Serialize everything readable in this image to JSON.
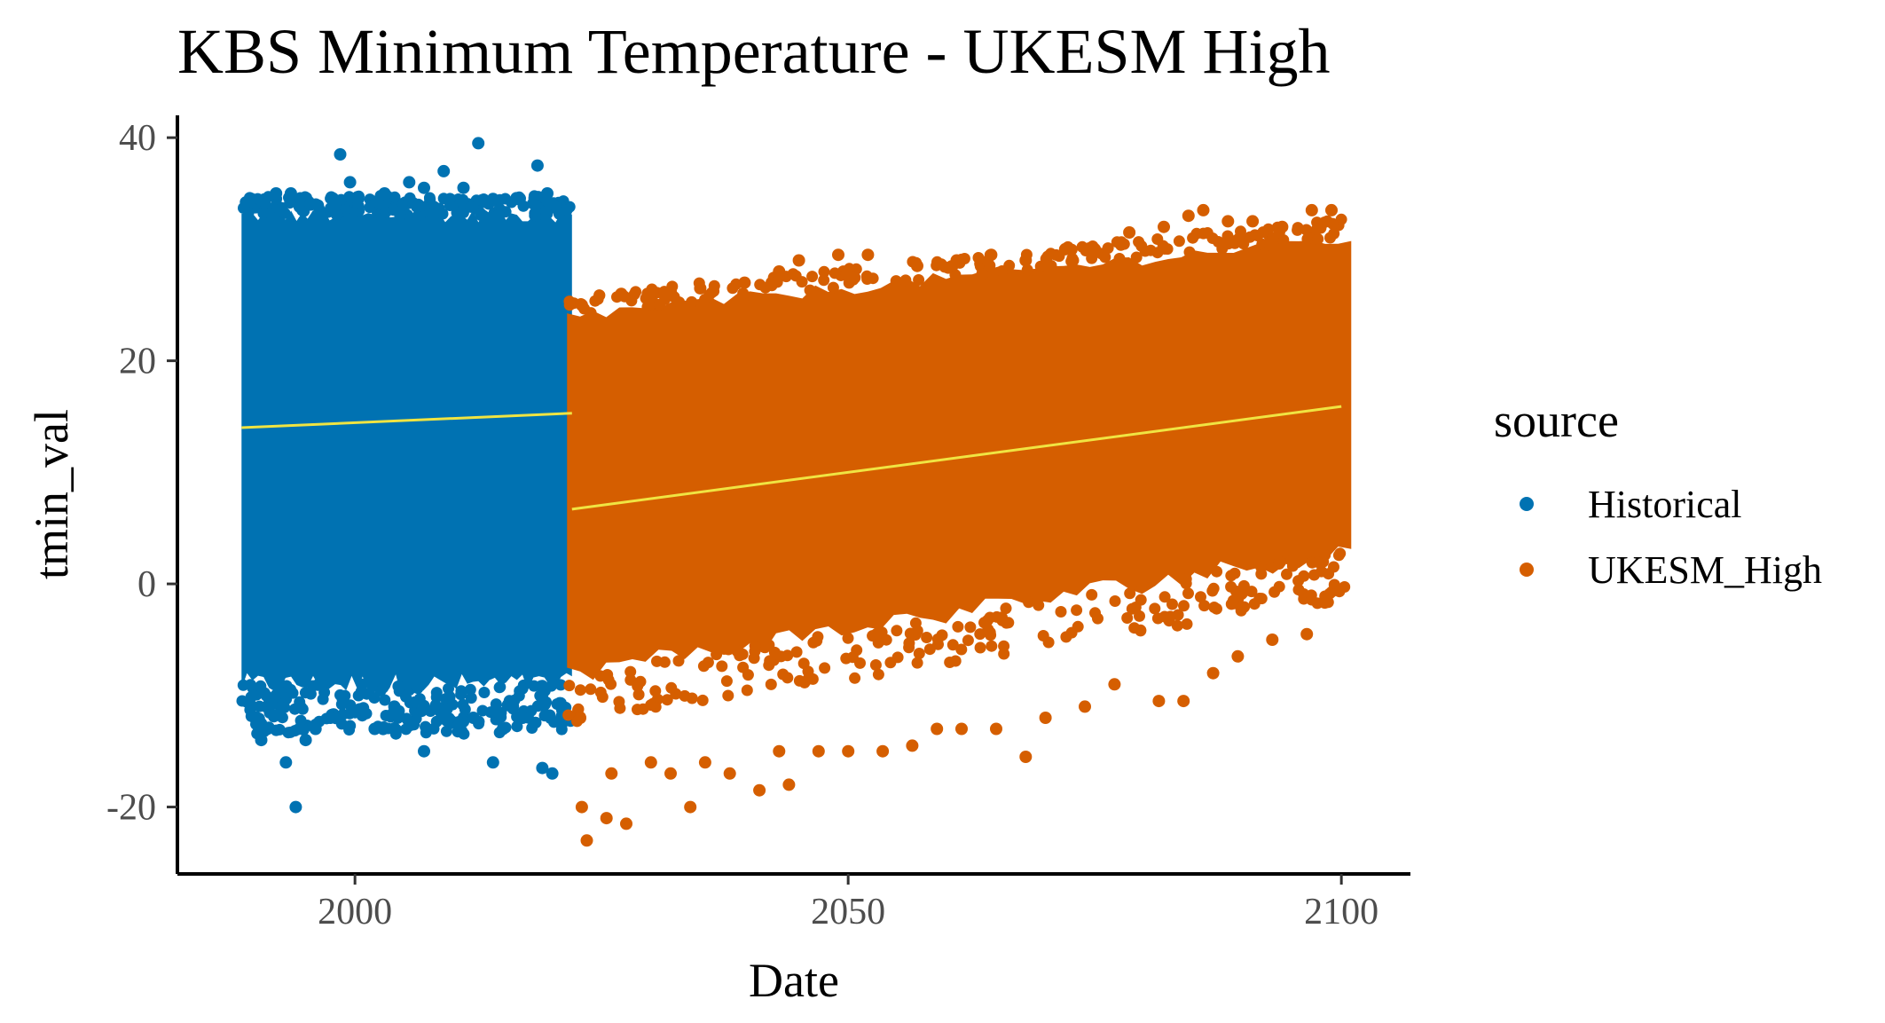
{
  "chart_data": {
    "type": "scatter",
    "title": "KBS Minimum Temperature - UKESM High",
    "xlabel": "Date",
    "ylabel": "tmin_val",
    "xlim": [
      1982,
      2107
    ],
    "ylim": [
      -26,
      42
    ],
    "x_ticks": [
      2000,
      2050,
      2100
    ],
    "y_ticks": [
      -20,
      0,
      20,
      40
    ],
    "grid": false,
    "legend": {
      "title": "source",
      "placement": "right",
      "entries": [
        {
          "label": "Historical",
          "color": "#0072B2"
        },
        {
          "label": "UKESM_High",
          "color": "#D55E00"
        }
      ]
    },
    "series": [
      {
        "name": "Historical",
        "color": "#0072B2",
        "x_range": [
          1988.5,
          2022.0
        ],
        "dense_band": {
          "upper": 33,
          "lower": -9
        },
        "extremes": [
          [
            1989.5,
            34.5
          ],
          [
            1992.0,
            35.0
          ],
          [
            1993.5,
            35.0
          ],
          [
            1995.5,
            34.0
          ],
          [
            1998.5,
            38.5
          ],
          [
            1999.5,
            36.0
          ],
          [
            2003.0,
            35.0
          ],
          [
            2005.5,
            36.0
          ],
          [
            2007.0,
            35.5
          ],
          [
            2009.0,
            37.0
          ],
          [
            2011.0,
            35.5
          ],
          [
            2012.5,
            39.5
          ],
          [
            2014.0,
            34.5
          ],
          [
            2016.5,
            34.5
          ],
          [
            2018.5,
            37.5
          ],
          [
            2019.5,
            35.0
          ],
          [
            1990.5,
            -14.0
          ],
          [
            1993.0,
            -16.0
          ],
          [
            1994.0,
            -20.0
          ],
          [
            1995.0,
            -14.0
          ],
          [
            1996.0,
            -13.0
          ],
          [
            1997.5,
            -12.0
          ],
          [
            2000.0,
            -11.5
          ],
          [
            2002.0,
            -13.0
          ],
          [
            2004.0,
            -11.0
          ],
          [
            2007.0,
            -15.0
          ],
          [
            2009.0,
            -12.0
          ],
          [
            2012.0,
            -12.0
          ],
          [
            2014.0,
            -16.0
          ],
          [
            2015.0,
            -13.0
          ],
          [
            2017.0,
            -12.0
          ],
          [
            2019.0,
            -16.5
          ],
          [
            2020.0,
            -17.0
          ]
        ]
      },
      {
        "name": "UKESM_High",
        "color": "#D55E00",
        "x_range": [
          2021.5,
          2101.0
        ],
        "dense_band": {
          "upper_start": 24,
          "upper_end": 31,
          "lower_start": -8,
          "lower_end": 3
        },
        "extremes": [
          [
            2023.0,
            25.0
          ],
          [
            2027.0,
            26.0
          ],
          [
            2031.5,
            26.0
          ],
          [
            2035.0,
            26.5
          ],
          [
            2039.5,
            27.0
          ],
          [
            2043.0,
            28.0
          ],
          [
            2045.0,
            29.0
          ],
          [
            2049.0,
            29.5
          ],
          [
            2052.0,
            29.5
          ],
          [
            2057.0,
            28.5
          ],
          [
            2061.0,
            29.0
          ],
          [
            2064.5,
            29.5
          ],
          [
            2068.0,
            29.0
          ],
          [
            2072.0,
            30.0
          ],
          [
            2075.0,
            30.0
          ],
          [
            2078.5,
            31.5
          ],
          [
            2082.0,
            32.0
          ],
          [
            2084.5,
            33.0
          ],
          [
            2086.0,
            33.5
          ],
          [
            2088.5,
            32.5
          ],
          [
            2091.0,
            32.5
          ],
          [
            2094.0,
            32.0
          ],
          [
            2097.0,
            33.5
          ],
          [
            2099.0,
            33.5
          ],
          [
            2023.0,
            -20.0
          ],
          [
            2023.5,
            -23.0
          ],
          [
            2025.5,
            -21.0
          ],
          [
            2026.0,
            -17.0
          ],
          [
            2027.5,
            -21.5
          ],
          [
            2030.0,
            -16.0
          ],
          [
            2032.0,
            -17.0
          ],
          [
            2034.0,
            -20.0
          ],
          [
            2035.5,
            -16.0
          ],
          [
            2038.0,
            -17.0
          ],
          [
            2041.0,
            -18.5
          ],
          [
            2043.0,
            -15.0
          ],
          [
            2044.0,
            -18.0
          ],
          [
            2047.0,
            -15.0
          ],
          [
            2050.0,
            -15.0
          ],
          [
            2053.5,
            -15.0
          ],
          [
            2056.5,
            -14.5
          ],
          [
            2059.0,
            -13.0
          ],
          [
            2061.5,
            -13.0
          ],
          [
            2065.0,
            -13.0
          ],
          [
            2068.0,
            -15.5
          ],
          [
            2070.0,
            -12.0
          ],
          [
            2074.0,
            -11.0
          ],
          [
            2077.0,
            -9.0
          ],
          [
            2081.5,
            -10.5
          ],
          [
            2084.0,
            -10.5
          ],
          [
            2087.0,
            -8.0
          ],
          [
            2089.5,
            -6.5
          ],
          [
            2093.0,
            -5.0
          ],
          [
            2096.5,
            -4.5
          ]
        ]
      }
    ],
    "trend_lines": [
      {
        "series": "Historical",
        "color": "#F0E442",
        "x": [
          1988.5,
          2022.0
        ],
        "y": [
          14.0,
          15.3
        ]
      },
      {
        "series": "UKESM_High",
        "color": "#F0E442",
        "x": [
          2022.0,
          2100.0
        ],
        "y": [
          6.7,
          15.9
        ]
      }
    ]
  }
}
